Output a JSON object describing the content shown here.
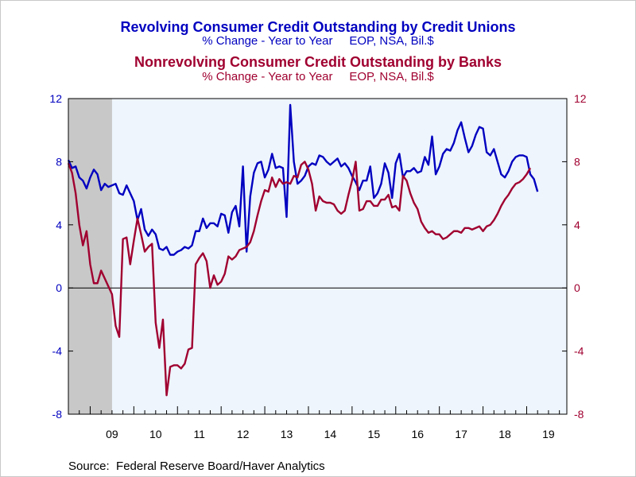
{
  "chart_data": {
    "type": "line",
    "title_1": "Revolving Consumer Credit Outstanding by Credit Unions",
    "subtitle_1": "% Change - Year to Year     EOP, NSA, Bil.$",
    "title_2": "Nonrevolving Consumer Credit Outstanding by Banks",
    "subtitle_2": "% Change - Year to Year     EOP, NSA, Bil.$",
    "source": "Source:  Federal Reserve Board/Haver Analytics",
    "y_left": {
      "min": -8,
      "max": 12,
      "ticks": [
        "12",
        "8",
        "4",
        "0",
        "-4",
        "-8"
      ]
    },
    "y_right": {
      "min": -8,
      "max": 12,
      "ticks": [
        "12",
        "8",
        "4",
        "0",
        "-4",
        "-8"
      ]
    },
    "x_range": [
      2008.5,
      2019.92
    ],
    "year_labels": [
      "09",
      "10",
      "11",
      "12",
      "13",
      "14",
      "15",
      "16",
      "17",
      "18",
      "19"
    ],
    "recession": {
      "start": 2008.5,
      "end": 2009.5,
      "color": "#c8c8c8"
    },
    "grid": false,
    "plot_background": "#eef5fc",
    "zero_line": true,
    "series": [
      {
        "name": "Revolving Consumer Credit Outstanding by Credit Unions",
        "axis": "left",
        "color": "#0000c0",
        "start": 2008.5,
        "step": 0.08333,
        "values": [
          8.1,
          7.6,
          7.7,
          7.0,
          6.8,
          6.3,
          7.0,
          7.5,
          7.2,
          6.2,
          6.6,
          6.4,
          6.5,
          6.6,
          6.0,
          5.9,
          6.5,
          6.0,
          5.5,
          4.3,
          5.0,
          3.7,
          3.3,
          3.7,
          3.4,
          2.5,
          2.4,
          2.6,
          2.1,
          2.1,
          2.3,
          2.4,
          2.6,
          2.5,
          2.7,
          3.6,
          3.6,
          4.4,
          3.8,
          4.1,
          4.1,
          3.9,
          4.7,
          4.6,
          3.5,
          4.8,
          5.2,
          3.9,
          7.7,
          2.3,
          5.8,
          7.3,
          7.9,
          8.0,
          7.0,
          7.5,
          8.5,
          7.6,
          7.7,
          7.6,
          4.5,
          11.6,
          8.0,
          6.6,
          6.8,
          7.1,
          7.7,
          7.9,
          7.8,
          8.4,
          8.3,
          8.0,
          7.8,
          8.0,
          8.2,
          7.7,
          7.9,
          7.6,
          7.1,
          6.7,
          6.2,
          6.8,
          6.8,
          7.7,
          5.7,
          6.0,
          6.6,
          7.9,
          7.3,
          5.7,
          7.9,
          8.5,
          7.0,
          7.4,
          7.4,
          7.6,
          7.3,
          7.4,
          8.3,
          7.8,
          9.6,
          7.2,
          7.7,
          8.5,
          8.8,
          8.7,
          9.2,
          10.0,
          10.5,
          9.5,
          8.6,
          9.0,
          9.7,
          10.2,
          10.1,
          8.6,
          8.4,
          8.8,
          8.0,
          7.2,
          7.0,
          7.4,
          8.0,
          8.3,
          8.4,
          8.4,
          8.3,
          7.2,
          6.9,
          6.1
        ]
      },
      {
        "name": "Nonrevolving Consumer Credit Outstanding by Banks",
        "axis": "right",
        "color": "#a00030",
        "start": 2008.5,
        "step": 0.08333,
        "values": [
          7.9,
          7.3,
          6.0,
          4.0,
          2.7,
          3.6,
          1.5,
          0.3,
          0.3,
          1.1,
          0.6,
          0.1,
          -0.4,
          -2.4,
          -3.1,
          3.1,
          3.2,
          1.5,
          3.0,
          4.4,
          3.4,
          2.3,
          2.6,
          2.8,
          -2.2,
          -3.8,
          -2.0,
          -6.8,
          -5.0,
          -4.9,
          -4.9,
          -5.1,
          -4.8,
          -3.9,
          -3.8,
          1.5,
          1.9,
          2.2,
          1.7,
          0.0,
          0.8,
          0.2,
          0.4,
          0.9,
          2.0,
          1.8,
          2.0,
          2.4,
          2.5,
          2.6,
          2.9,
          3.6,
          4.6,
          5.5,
          6.2,
          6.1,
          7.0,
          6.4,
          6.9,
          6.6,
          6.7,
          6.6,
          7.1,
          7.0,
          7.8,
          8.0,
          7.5,
          6.6,
          4.9,
          5.8,
          5.5,
          5.4,
          5.4,
          5.3,
          4.9,
          4.7,
          4.9,
          5.9,
          6.8,
          8.0,
          4.9,
          5.0,
          5.5,
          5.5,
          5.2,
          5.2,
          5.6,
          5.6,
          5.9,
          5.1,
          5.2,
          4.9,
          7.1,
          6.8,
          6.0,
          5.4,
          5.0,
          4.2,
          3.8,
          3.5,
          3.6,
          3.4,
          3.4,
          3.1,
          3.2,
          3.4,
          3.6,
          3.6,
          3.5,
          3.8,
          3.8,
          3.7,
          3.8,
          3.9,
          3.6,
          3.9,
          4.0,
          4.3,
          4.7,
          5.2,
          5.6,
          5.9,
          6.3,
          6.6,
          6.7,
          6.9,
          7.2,
          7.6
        ]
      }
    ]
  }
}
